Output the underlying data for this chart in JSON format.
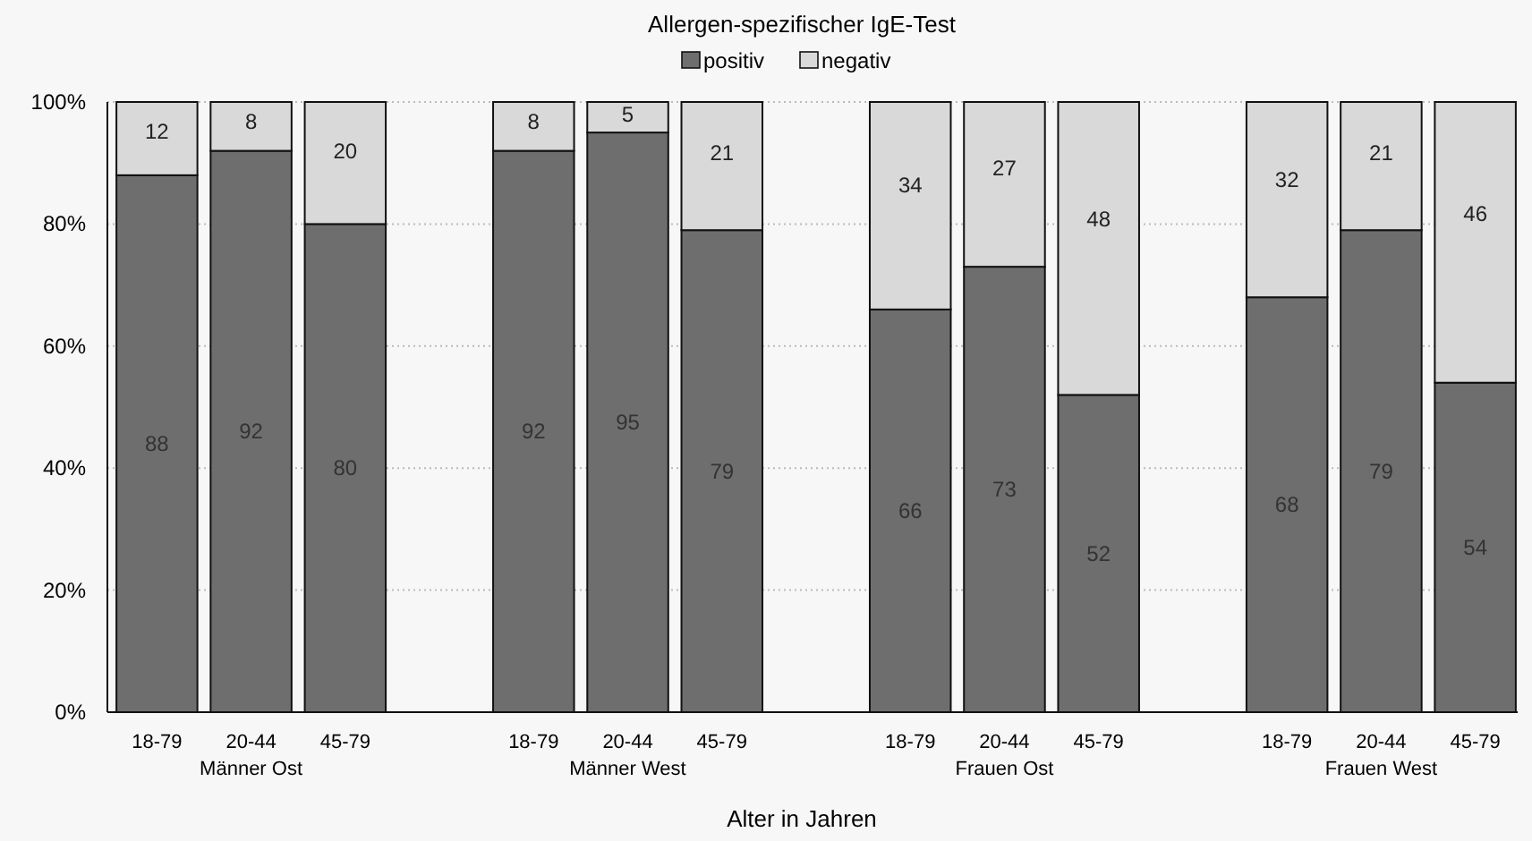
{
  "chart_data": {
    "type": "bar",
    "title": "Allergen-spezifischer IgE-Test",
    "xlabel": "Alter in Jahren",
    "categories": [
      "18-79",
      "20-44",
      "45-79",
      "18-79",
      "20-44",
      "45-79",
      "18-79",
      "20-44",
      "45-79",
      "18-79",
      "20-44",
      "45-79"
    ],
    "series": [
      {
        "name": "positiv",
        "color": "#6e6e6e",
        "values": [
          88,
          92,
          80,
          92,
          95,
          79,
          66,
          73,
          52,
          68,
          79,
          54
        ]
      },
      {
        "name": "negativ",
        "color": "#d9d9d9",
        "values": [
          12,
          8,
          20,
          8,
          5,
          21,
          34,
          27,
          48,
          32,
          21,
          46
        ]
      }
    ],
    "stacked": true,
    "data_labels": true,
    "legend": "top",
    "grid": "y",
    "ylim": [
      0,
      100
    ],
    "yticks": [
      {
        "value": 0,
        "label": "0%"
      },
      {
        "value": 20,
        "label": "20%"
      },
      {
        "value": 40,
        "label": "40%"
      },
      {
        "value": 60,
        "label": "60%"
      },
      {
        "value": 80,
        "label": "80%"
      },
      {
        "value": 100,
        "label": "100%"
      }
    ],
    "annotations": [
      "Männer Ost",
      "Männer West",
      "Frauen Ost",
      "Frauen West"
    ]
  }
}
